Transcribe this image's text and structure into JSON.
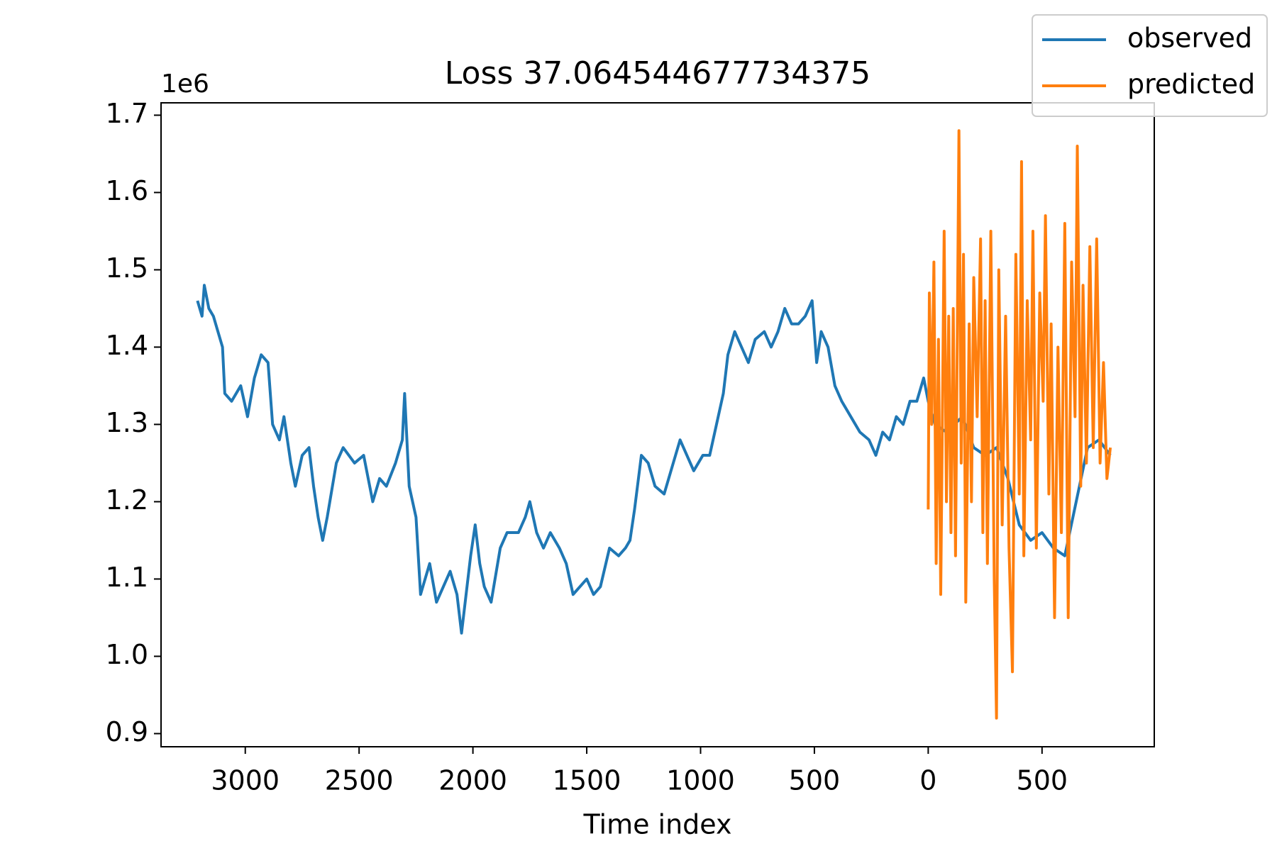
{
  "chart_data": {
    "type": "line",
    "title": "Loss 37.064544677734375",
    "xlabel": "Time index",
    "y_offset_label": "1e6",
    "legend": "upper right",
    "xlim": [
      -3370,
      993
    ],
    "ylim": [
      883000,
      1716000
    ],
    "xticks": [
      {
        "value": -3000,
        "label": "3000"
      },
      {
        "value": -2500,
        "label": "2500"
      },
      {
        "value": -2000,
        "label": "2000"
      },
      {
        "value": -1500,
        "label": "1500"
      },
      {
        "value": -1000,
        "label": "1000"
      },
      {
        "value": -500,
        "label": "500"
      },
      0,
      500
    ],
    "yticks": [
      {
        "value": 900000,
        "label": "0.9"
      },
      {
        "value": 1000000,
        "label": "1.0"
      },
      {
        "value": 1100000,
        "label": "1.1"
      },
      {
        "value": 1200000,
        "label": "1.2"
      },
      {
        "value": 1300000,
        "label": "1.3"
      },
      {
        "value": 1400000,
        "label": "1.4"
      },
      {
        "value": 1500000,
        "label": "1.5"
      },
      {
        "value": 1600000,
        "label": "1.6"
      },
      {
        "value": 1700000,
        "label": "1.7"
      }
    ],
    "series": [
      {
        "name": "observed",
        "color": "#1f77b4",
        "x": [
          -3210,
          -3190,
          -3180,
          -3160,
          -3140,
          -3120,
          -3100,
          -3090,
          -3060,
          -3020,
          -2990,
          -2960,
          -2930,
          -2900,
          -2880,
          -2850,
          -2830,
          -2800,
          -2780,
          -2750,
          -2720,
          -2700,
          -2680,
          -2660,
          -2640,
          -2600,
          -2570,
          -2520,
          -2480,
          -2440,
          -2410,
          -2380,
          -2340,
          -2310,
          -2300,
          -2280,
          -2250,
          -2230,
          -2210,
          -2190,
          -2160,
          -2130,
          -2100,
          -2070,
          -2050,
          -2030,
          -2010,
          -1990,
          -1970,
          -1950,
          -1920,
          -1880,
          -1850,
          -1800,
          -1770,
          -1750,
          -1720,
          -1690,
          -1660,
          -1620,
          -1590,
          -1560,
          -1530,
          -1500,
          -1470,
          -1440,
          -1400,
          -1360,
          -1330,
          -1310,
          -1290,
          -1260,
          -1230,
          -1200,
          -1160,
          -1120,
          -1090,
          -1060,
          -1030,
          -990,
          -960,
          -930,
          -900,
          -880,
          -850,
          -820,
          -790,
          -760,
          -720,
          -690,
          -660,
          -630,
          -600,
          -570,
          -540,
          -510,
          -490,
          -470,
          -440,
          -410,
          -380,
          -340,
          -300,
          -260,
          -230,
          -200,
          -170,
          -140,
          -110,
          -80,
          -50,
          -20,
          0,
          30,
          80,
          150,
          200,
          250,
          300,
          350,
          400,
          450,
          500,
          550,
          600,
          650,
          700,
          750,
          800
        ],
        "values": [
          1460000,
          1440000,
          1480000,
          1450000,
          1440000,
          1420000,
          1400000,
          1340000,
          1330000,
          1350000,
          1310000,
          1360000,
          1390000,
          1380000,
          1300000,
          1280000,
          1310000,
          1250000,
          1220000,
          1260000,
          1270000,
          1220000,
          1180000,
          1150000,
          1180000,
          1250000,
          1270000,
          1250000,
          1260000,
          1200000,
          1230000,
          1220000,
          1250000,
          1280000,
          1340000,
          1220000,
          1180000,
          1080000,
          1100000,
          1120000,
          1070000,
          1090000,
          1110000,
          1080000,
          1030000,
          1080000,
          1130000,
          1170000,
          1120000,
          1090000,
          1070000,
          1140000,
          1160000,
          1160000,
          1180000,
          1200000,
          1160000,
          1140000,
          1160000,
          1140000,
          1120000,
          1080000,
          1090000,
          1100000,
          1080000,
          1090000,
          1140000,
          1130000,
          1140000,
          1150000,
          1190000,
          1260000,
          1250000,
          1220000,
          1210000,
          1250000,
          1280000,
          1260000,
          1240000,
          1260000,
          1260000,
          1300000,
          1340000,
          1390000,
          1420000,
          1400000,
          1380000,
          1410000,
          1420000,
          1400000,
          1420000,
          1450000,
          1430000,
          1430000,
          1440000,
          1460000,
          1380000,
          1420000,
          1400000,
          1350000,
          1330000,
          1310000,
          1290000,
          1280000,
          1260000,
          1290000,
          1280000,
          1310000,
          1300000,
          1330000,
          1330000,
          1360000,
          1330000,
          1300000,
          1290000,
          1310000,
          1270000,
          1260000,
          1270000,
          1230000,
          1170000,
          1150000,
          1160000,
          1140000,
          1130000,
          1200000,
          1270000,
          1280000,
          1260000
        ]
      },
      {
        "name": "predicted",
        "color": "#ff7f0e",
        "x": [
          0,
          5,
          15,
          25,
          35,
          45,
          55,
          70,
          80,
          90,
          100,
          110,
          120,
          135,
          145,
          155,
          165,
          180,
          190,
          200,
          215,
          230,
          240,
          250,
          260,
          275,
          290,
          300,
          310,
          325,
          340,
          355,
          370,
          385,
          400,
          410,
          420,
          435,
          450,
          460,
          475,
          490,
          505,
          515,
          530,
          540,
          555,
          570,
          585,
          600,
          615,
          630,
          645,
          655,
          670,
          680,
          695,
          710,
          725,
          740,
          755,
          770,
          785,
          800
        ],
        "values": [
          1190000,
          1470000,
          1300000,
          1510000,
          1120000,
          1410000,
          1080000,
          1550000,
          1200000,
          1440000,
          1160000,
          1450000,
          1130000,
          1680000,
          1250000,
          1520000,
          1070000,
          1430000,
          1200000,
          1490000,
          1310000,
          1540000,
          1160000,
          1460000,
          1120000,
          1550000,
          1100000,
          920000,
          1500000,
          1170000,
          1440000,
          1140000,
          980000,
          1520000,
          1210000,
          1640000,
          1130000,
          1460000,
          1280000,
          1550000,
          1140000,
          1470000,
          1330000,
          1570000,
          1210000,
          1430000,
          1050000,
          1400000,
          1160000,
          1560000,
          1050000,
          1510000,
          1310000,
          1660000,
          1220000,
          1480000,
          1250000,
          1530000,
          1270000,
          1540000,
          1250000,
          1380000,
          1230000,
          1270000
        ]
      }
    ]
  }
}
